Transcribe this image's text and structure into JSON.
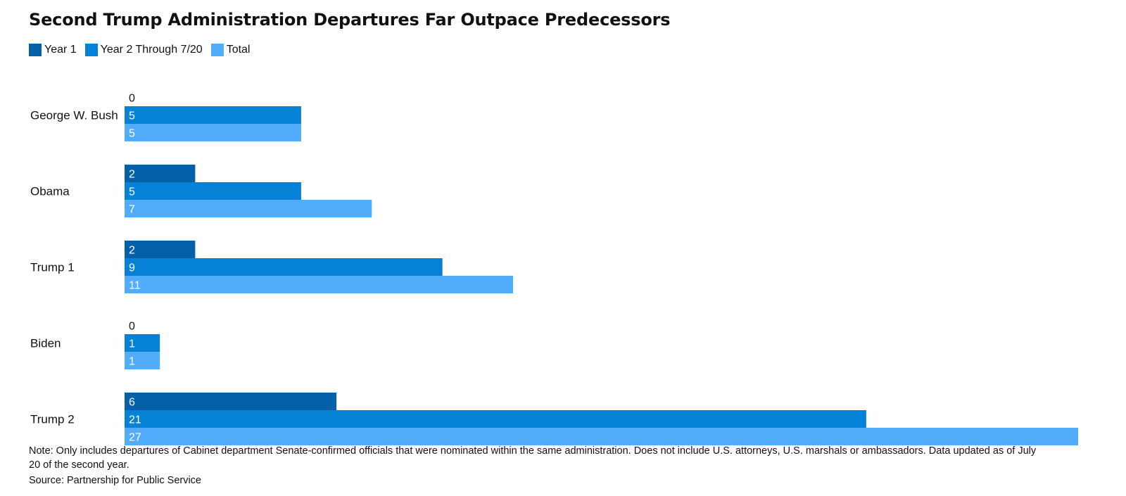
{
  "chart_data": {
    "type": "bar",
    "orientation": "horizontal",
    "title": "Second Trump Administration Departures Far Outpace Predecessors",
    "categories": [
      "George W. Bush",
      "Obama",
      "Trump 1",
      "Biden",
      "Trump 2"
    ],
    "series": [
      {
        "name": "Year 1",
        "color": "#0560a8",
        "values": [
          0,
          2,
          2,
          0,
          6
        ]
      },
      {
        "name": "Year 2 Through 7/20",
        "color": "#0582d6",
        "values": [
          5,
          5,
          9,
          1,
          21
        ]
      },
      {
        "name": "Total",
        "color": "#52acfc",
        "values": [
          5,
          7,
          11,
          1,
          27
        ]
      }
    ],
    "xlim": [
      0,
      27
    ],
    "grid": false,
    "legend_position": "top-left",
    "note": "Note: Only includes departures of Cabinet department Senate-confirmed officials that were nominated within the same administration. Does not include U.S. attorneys, U.S. marshals or ambassadors. Data updated as of July 20 of the second year.",
    "source": "Source: Partnership for Public Service"
  }
}
